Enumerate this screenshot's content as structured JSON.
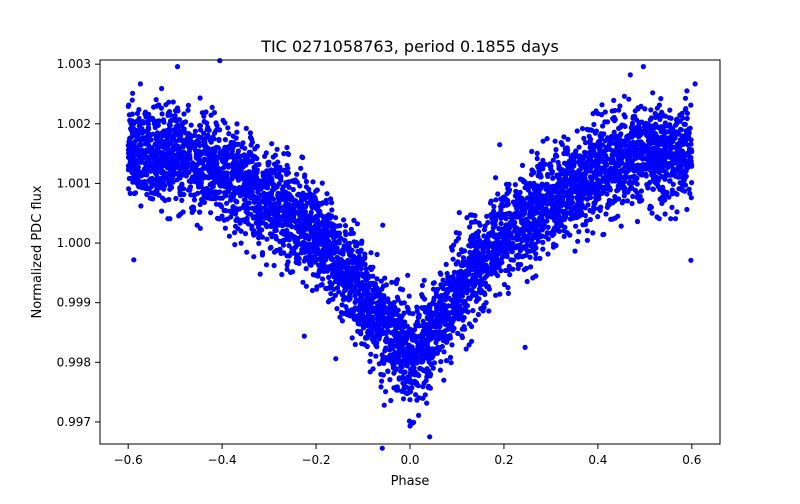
{
  "chart_data": {
    "type": "scatter",
    "title": "TIC 0271058763, period 0.1855 days",
    "xlabel": "Phase",
    "ylabel": "Normalized PDC flux",
    "xlim": [
      -0.66,
      0.66
    ],
    "ylim": [
      0.99663,
      1.00307
    ],
    "xticks": [
      -0.6,
      -0.4,
      -0.2,
      0.0,
      0.2,
      0.4,
      0.6
    ],
    "xtick_labels": [
      "−0.6",
      "−0.4",
      "−0.2",
      "0.0",
      "0.2",
      "0.4",
      "0.6"
    ],
    "yticks": [
      0.997,
      0.998,
      0.999,
      1.0,
      1.001,
      1.002,
      1.003
    ],
    "ytick_labels": [
      "0.997",
      "0.998",
      "0.999",
      "1.000",
      "1.001",
      "1.002",
      "1.003"
    ],
    "grid": false,
    "legend": "none",
    "marker_color": "#0000ff",
    "point_summary": {
      "phase_range": [
        -0.6,
        0.6
      ],
      "mean_curve": [
        {
          "phase": -0.6,
          "flux": 1.0015
        },
        {
          "phase": -0.5,
          "flux": 1.0015
        },
        {
          "phase": -0.4,
          "flux": 1.0012
        },
        {
          "phase": -0.3,
          "flux": 1.0007
        },
        {
          "phase": -0.2,
          "flux": 1.0002
        },
        {
          "phase": -0.1,
          "flux": 0.9991
        },
        {
          "phase": 0.0,
          "flux": 0.998
        },
        {
          "phase": 0.1,
          "flux": 0.9991
        },
        {
          "phase": 0.2,
          "flux": 1.0002
        },
        {
          "phase": 0.3,
          "flux": 1.0007
        },
        {
          "phase": 0.4,
          "flux": 1.0012
        },
        {
          "phase": 0.5,
          "flux": 1.0015
        },
        {
          "phase": 0.6,
          "flux": 1.0015
        }
      ],
      "scatter_sigma": 0.00042,
      "outlier_points": [
        {
          "x": -0.405,
          "y": 1.00306
        },
        {
          "x": -0.495,
          "y": 1.00296
        },
        {
          "x": 0.497,
          "y": 1.00296
        },
        {
          "x": 0.469,
          "y": 1.00282
        },
        {
          "x": -0.574,
          "y": 1.00267
        },
        {
          "x": 0.607,
          "y": 1.00267
        },
        {
          "x": 0.191,
          "y": 1.00165
        },
        {
          "x": 0.105,
          "y": 1.00051
        },
        {
          "x": -0.058,
          "y": 1.0003
        },
        {
          "x": -0.588,
          "y": 0.99972
        },
        {
          "x": 0.598,
          "y": 0.99971
        },
        {
          "x": -0.319,
          "y": 0.99948
        },
        {
          "x": -0.005,
          "y": 0.99946
        },
        {
          "x": -0.225,
          "y": 0.99844
        },
        {
          "x": -0.158,
          "y": 0.99806
        },
        {
          "x": 0.245,
          "y": 0.99825
        },
        {
          "x": -0.059,
          "y": 0.99656
        },
        {
          "x": 0.042,
          "y": 0.99675
        },
        {
          "x": 0.005,
          "y": 0.99698
        },
        {
          "x": -0.055,
          "y": 0.99728
        }
      ]
    }
  }
}
